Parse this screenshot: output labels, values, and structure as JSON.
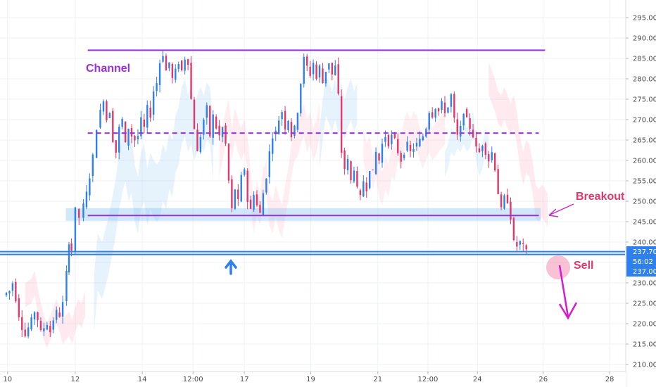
{
  "chart_data": {
    "type": "candlestick",
    "y_axis": {
      "ylim": [
        208,
        298
      ],
      "ticks": [
        "295.00",
        "290.00",
        "285.00",
        "280.00",
        "275.00",
        "270.00",
        "265.00",
        "260.00",
        "255.00",
        "250.00",
        "245.00",
        "240.00",
        "235.00",
        "230.00",
        "225.00",
        "220.00",
        "215.00",
        "210.00"
      ]
    },
    "x_axis": {
      "ticks": [
        {
          "label": "10",
          "t": 0.2
        },
        {
          "label": "12",
          "t": 11
        },
        {
          "label": "14",
          "t": 21.7
        },
        {
          "label": "12:00",
          "t": 29.8
        },
        {
          "label": "17",
          "t": 38
        },
        {
          "label": "19",
          "t": 48.6
        },
        {
          "label": "21",
          "t": 59.3
        },
        {
          "label": "12:00",
          "t": 67.3
        },
        {
          "label": "24",
          "t": 75.2
        },
        {
          "label": "26",
          "t": 85.7
        },
        {
          "label": "28",
          "t": 96.3
        }
      ],
      "t_range": [
        0,
        98.5
      ]
    },
    "price_labels": {
      "current_price": "237.70",
      "countdown": "56:02",
      "support": "237.00"
    },
    "levels": {
      "channel_top": {
        "value": 287,
        "t_start": 13,
        "t_end": 86
      },
      "channel_mid": {
        "value": 266.7,
        "t_start": 13,
        "t_end": 85
      },
      "channel_bottom": {
        "value": 246.5,
        "t_start": 13,
        "t_end": 85
      },
      "support": {
        "value": 237.3
      },
      "support_zone": [
        245.2,
        248.3
      ]
    },
    "annotations": {
      "channel": "Channel",
      "breakout": "Breakout",
      "sell": "Sell"
    },
    "path_points": [
      [
        0,
        227
      ],
      [
        1,
        228
      ],
      [
        1.5,
        230
      ],
      [
        2,
        226
      ],
      [
        2.5,
        222
      ],
      [
        3,
        219
      ],
      [
        3.5,
        217
      ],
      [
        4,
        219
      ],
      [
        4.5,
        221
      ],
      [
        5,
        223
      ],
      [
        5.5,
        221
      ],
      [
        6,
        218
      ],
      [
        6.5,
        219
      ],
      [
        7,
        220
      ],
      [
        7.5,
        218
      ],
      [
        8,
        221
      ],
      [
        8.5,
        223
      ],
      [
        9,
        222
      ],
      [
        9.6,
        225
      ],
      [
        10.4,
        240
      ],
      [
        11,
        238
      ],
      [
        11.6,
        248
      ],
      [
        12.3,
        246
      ],
      [
        12.8,
        249
      ],
      [
        13.3,
        252
      ],
      [
        13.8,
        256
      ],
      [
        14.4,
        261
      ],
      [
        15,
        268
      ],
      [
        15.5,
        272
      ],
      [
        16,
        275
      ],
      [
        16.5,
        270
      ],
      [
        17,
        272
      ],
      [
        17.5,
        265
      ],
      [
        18,
        262
      ],
      [
        18.5,
        268
      ],
      [
        19,
        270
      ],
      [
        19.5,
        264
      ],
      [
        20,
        268
      ],
      [
        20.5,
        266
      ],
      [
        21,
        265
      ],
      [
        21.5,
        266
      ],
      [
        22,
        270
      ],
      [
        22.5,
        268
      ],
      [
        23,
        273
      ],
      [
        23.5,
        271
      ],
      [
        24,
        277
      ],
      [
        24.5,
        279
      ],
      [
        25,
        284
      ],
      [
        25.5,
        286
      ],
      [
        26,
        282
      ],
      [
        26.5,
        284
      ],
      [
        27,
        280
      ],
      [
        27.5,
        282
      ],
      [
        28,
        284
      ],
      [
        28.5,
        282
      ],
      [
        29,
        285
      ],
      [
        29.5,
        284
      ],
      [
        30,
        275
      ],
      [
        30.5,
        268
      ],
      [
        31,
        262
      ],
      [
        31.5,
        266
      ],
      [
        32,
        270
      ],
      [
        32.5,
        273
      ],
      [
        33,
        266
      ],
      [
        33.5,
        271
      ],
      [
        34,
        268
      ],
      [
        34.5,
        266
      ],
      [
        35,
        268
      ],
      [
        35.5,
        264
      ],
      [
        36,
        255
      ],
      [
        36.5,
        248
      ],
      [
        37,
        253
      ],
      [
        37.5,
        250
      ],
      [
        38,
        256
      ],
      [
        38.5,
        258
      ],
      [
        39,
        250
      ],
      [
        39.5,
        248
      ],
      [
        40,
        252
      ],
      [
        40.5,
        249
      ],
      [
        41,
        247
      ],
      [
        41.5,
        252
      ],
      [
        42,
        256
      ],
      [
        42.5,
        262
      ],
      [
        43,
        266
      ],
      [
        43.5,
        267
      ],
      [
        44,
        270
      ],
      [
        44.5,
        272
      ],
      [
        45,
        268
      ],
      [
        45.5,
        270
      ],
      [
        46,
        266
      ],
      [
        46.5,
        268
      ],
      [
        47,
        272
      ],
      [
        47.5,
        279
      ],
      [
        48,
        285
      ],
      [
        48.5,
        283
      ],
      [
        49,
        281
      ],
      [
        49.5,
        284
      ],
      [
        50,
        280
      ],
      [
        50.5,
        283
      ],
      [
        51,
        279
      ],
      [
        51.5,
        282
      ],
      [
        52,
        284
      ],
      [
        52.5,
        281
      ],
      [
        53,
        283
      ],
      [
        53.5,
        276
      ],
      [
        54,
        262
      ],
      [
        54.5,
        258
      ],
      [
        55,
        260
      ],
      [
        55.5,
        255
      ],
      [
        56,
        258
      ],
      [
        56.5,
        253
      ],
      [
        57,
        251
      ],
      [
        57.5,
        255
      ],
      [
        58,
        253
      ],
      [
        58.5,
        258
      ],
      [
        59,
        257
      ],
      [
        59.5,
        262
      ],
      [
        60,
        260
      ],
      [
        60.5,
        264
      ],
      [
        61,
        266
      ],
      [
        61.5,
        264
      ],
      [
        62,
        266
      ],
      [
        62.5,
        265
      ],
      [
        63,
        262
      ],
      [
        63.5,
        260
      ],
      [
        64,
        262
      ],
      [
        64.5,
        264
      ],
      [
        65,
        262
      ],
      [
        65.5,
        263
      ],
      [
        66,
        264
      ],
      [
        66.5,
        265
      ],
      [
        67,
        266
      ],
      [
        67.5,
        268
      ],
      [
        68,
        272
      ],
      [
        68.5,
        271
      ],
      [
        69,
        273
      ],
      [
        69.5,
        272
      ],
      [
        70,
        274
      ],
      [
        70.5,
        272
      ],
      [
        71,
        273
      ],
      [
        71.5,
        276
      ],
      [
        72,
        270
      ],
      [
        72.5,
        266
      ],
      [
        73,
        268
      ],
      [
        73.5,
        272
      ],
      [
        74,
        270
      ],
      [
        74.5,
        268
      ],
      [
        75,
        266
      ],
      [
        75.5,
        263
      ],
      [
        76,
        262
      ],
      [
        76.5,
        264
      ],
      [
        77,
        262
      ],
      [
        77.5,
        260
      ],
      [
        78,
        262
      ],
      [
        78.5,
        258
      ],
      [
        79,
        252
      ],
      [
        79.5,
        248
      ],
      [
        80,
        251
      ],
      [
        80.5,
        250
      ],
      [
        81,
        246
      ],
      [
        81.5,
        240
      ],
      [
        82,
        239
      ],
      [
        82.5,
        240
      ],
      [
        83,
        239
      ],
      [
        83.4,
        237.7
      ]
    ]
  }
}
